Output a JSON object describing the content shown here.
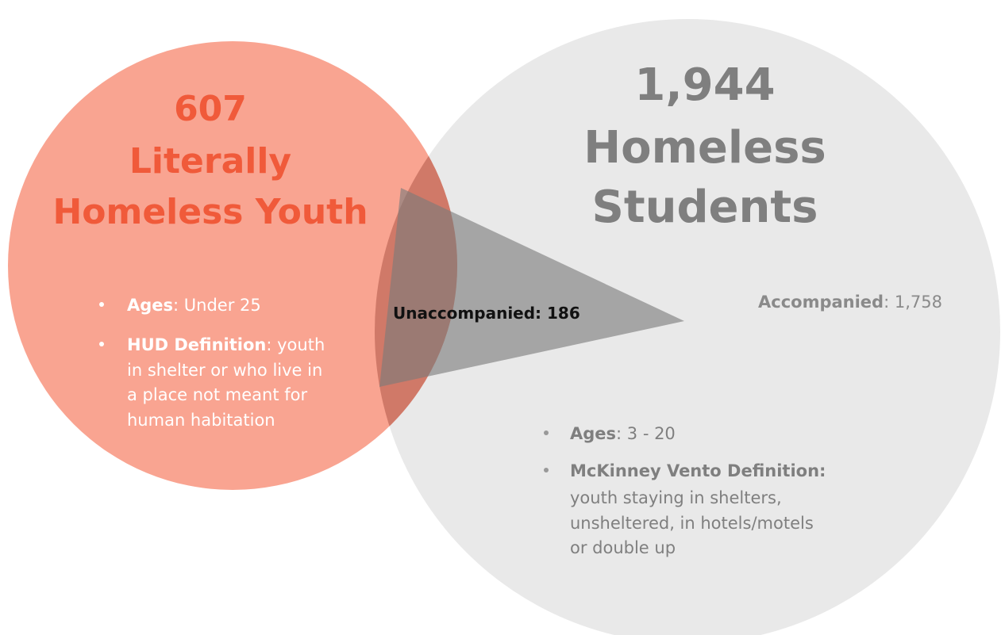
{
  "left_set": {
    "count": "607",
    "title": [
      "Literally",
      "Homeless Youth"
    ],
    "bullets": [
      {
        "label": "Ages",
        "lines": [
          ": Under 25"
        ]
      },
      {
        "label": "HUD Definition",
        "lines": [
          ": youth",
          "in shelter or who live in",
          "a  place not meant for",
          "human habitation"
        ]
      }
    ]
  },
  "right_set": {
    "count": "1,944",
    "title": [
      "Homeless",
      "Students"
    ],
    "accompanied": {
      "label": "Accompanied",
      "value": ": 1,758"
    },
    "bullets": [
      {
        "label": "Ages",
        "lines": [
          ": 3 - 20"
        ]
      },
      {
        "label": "McKinney Vento Definition:",
        "lines": [
          "",
          "youth staying in shelters,",
          "unsheltered, in hotels/motels",
          "or double up"
        ]
      }
    ]
  },
  "overlap": {
    "label": "Unaccompanied: 186"
  }
}
